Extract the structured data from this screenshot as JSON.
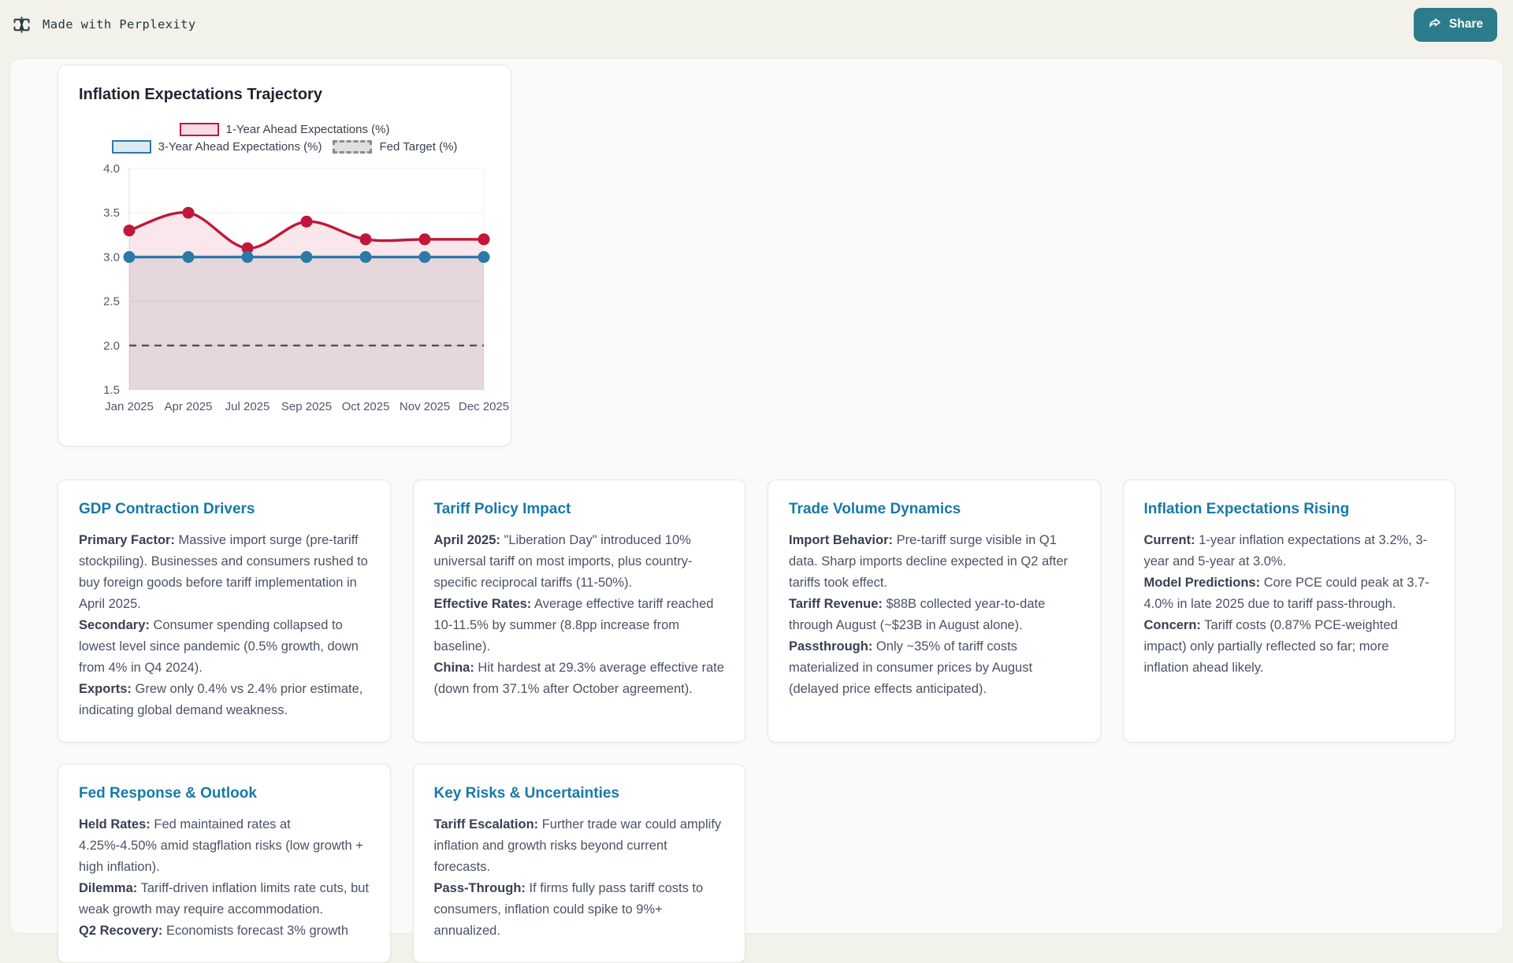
{
  "topbar": {
    "brand": "Made with Perplexity",
    "share_label": "Share"
  },
  "icons": {
    "brand": "perplexity-asterisk",
    "share": "forward-arrow"
  },
  "colors": {
    "page_bg": "#F2F1EA",
    "panel_bg": "#FAFAF8",
    "accent_teal": "#2D7C8B",
    "card_title_blue": "#1879A8",
    "chart_red": "#C0173A",
    "chart_blue": "#2B79A6",
    "fed_target_gray": "#52525B"
  },
  "chart_data": {
    "type": "line",
    "title": "Inflation Expectations Trajectory",
    "categories": [
      "Jan 2025",
      "Apr 2025",
      "Jul 2025",
      "Sep 2025",
      "Oct 2025",
      "Nov 2025",
      "Dec 2025"
    ],
    "series": [
      {
        "name": "1-Year Ahead Expectations (%)",
        "values": [
          3.3,
          3.5,
          3.1,
          3.4,
          3.2,
          3.2,
          3.2
        ],
        "color": "#C0173A",
        "fill": "rgba(193,23,58,0.10)",
        "swatch": "#F7DCE3",
        "smooth": true
      },
      {
        "name": "3-Year Ahead Expectations (%)",
        "values": [
          3.0,
          3.0,
          3.0,
          3.0,
          3.0,
          3.0,
          3.0
        ],
        "color": "#2B79A6",
        "fill": "rgba(105,105,125,0.13)",
        "swatch": "#DCEAF3",
        "smooth": false
      }
    ],
    "target": {
      "name": "Fed Target (%)",
      "value": 2.0,
      "style": "dashed",
      "color": "#52525B",
      "swatch": "#E0E0E0"
    },
    "ylim": [
      1.5,
      4.0
    ],
    "ytick_step": 0.5,
    "grid": true,
    "legend_position": "top"
  },
  "cards": [
    {
      "title": "GDP Contraction Drivers",
      "items": [
        {
          "label": "Primary Factor:",
          "text": "Massive import surge (pre-tariff stockpiling). Businesses and consumers rushed to buy foreign goods before tariff implementation in April 2025."
        },
        {
          "label": "Secondary:",
          "text": "Consumer spending collapsed to lowest level since pandemic (0.5% growth, down from 4% in Q4 2024)."
        },
        {
          "label": "Exports:",
          "text": "Grew only 0.4% vs 2.4% prior estimate, indicating global demand weakness."
        }
      ]
    },
    {
      "title": "Tariff Policy Impact",
      "items": [
        {
          "label": "April 2025:",
          "text": "\"Liberation Day\" introduced 10% universal tariff on most imports, plus country-specific reciprocal tariffs (11-50%)."
        },
        {
          "label": "Effective Rates:",
          "text": "Average effective tariff reached 10-11.5% by summer (8.8pp increase from baseline)."
        },
        {
          "label": "China:",
          "text": "Hit hardest at 29.3% average effective rate (down from 37.1% after October agreement)."
        }
      ]
    },
    {
      "title": "Trade Volume Dynamics",
      "items": [
        {
          "label": "Import Behavior:",
          "text": "Pre-tariff surge visible in Q1 data. Sharp imports decline expected in Q2 after tariffs took effect."
        },
        {
          "label": "Tariff Revenue:",
          "text": "$88B collected year-to-date through August (~$23B in August alone)."
        },
        {
          "label": "Passthrough:",
          "text": "Only ~35% of tariff costs materialized in consumer prices by August (delayed price effects anticipated)."
        }
      ]
    },
    {
      "title": "Inflation Expectations Rising",
      "items": [
        {
          "label": "Current:",
          "text": "1-year inflation expectations at 3.2%, 3-year and 5-year at 3.0%."
        },
        {
          "label": "Model Predictions:",
          "text": "Core PCE could peak at 3.7-4.0% in late 2025 due to tariff pass-through."
        },
        {
          "label": "Concern:",
          "text": "Tariff costs (0.87% PCE-weighted impact) only partially reflected so far; more inflation ahead likely."
        }
      ]
    },
    {
      "title": "Fed Response & Outlook",
      "items": [
        {
          "label": "Held Rates:",
          "text": "Fed maintained rates at 4.25%-4.50% amid stagflation risks (low growth + high inflation)."
        },
        {
          "label": "Dilemma:",
          "text": "Tariff-driven inflation limits rate cuts, but weak growth may require accommodation."
        },
        {
          "label": "Q2 Recovery:",
          "text": "Economists forecast 3% growth"
        }
      ]
    },
    {
      "title": "Key Risks & Uncertainties",
      "items": [
        {
          "label": "Tariff Escalation:",
          "text": "Further trade war could amplify inflation and growth risks beyond current forecasts."
        },
        {
          "label": "Pass-Through:",
          "text": "If firms fully pass tariff costs to consumers, inflation could spike to 9%+ annualized."
        }
      ]
    }
  ]
}
